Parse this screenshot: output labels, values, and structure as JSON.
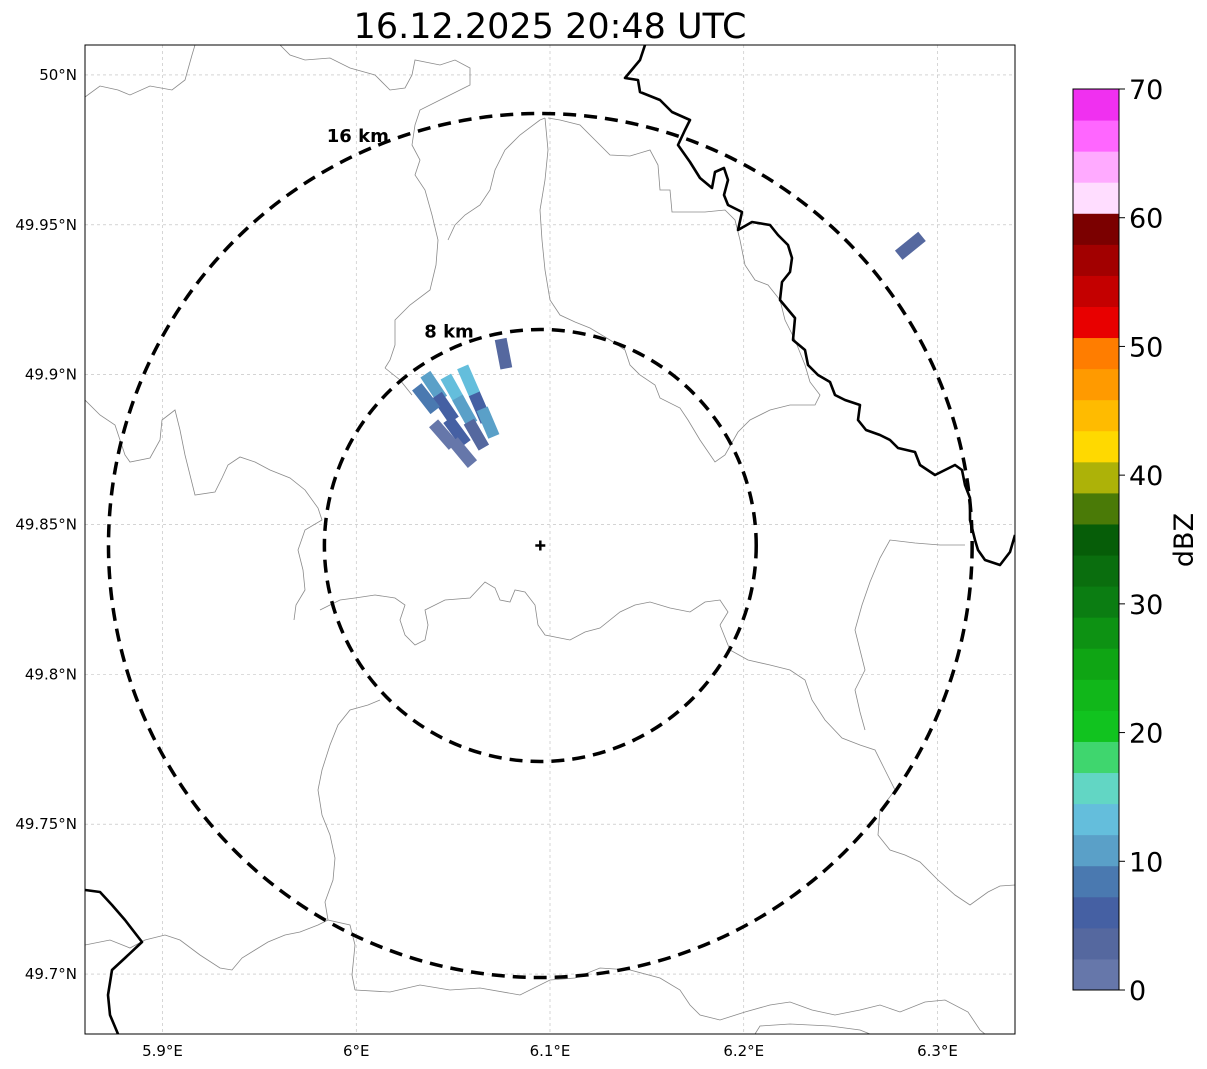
{
  "title": "16.12.2025 20:48 UTC",
  "map": {
    "lon_range": [
      5.86,
      6.34
    ],
    "lat_range": [
      49.68,
      50.01
    ],
    "radar_site": {
      "lon": 6.095,
      "lat": 49.843
    },
    "x_ticks": [
      {
        "value": 5.9,
        "label": "5.9°E"
      },
      {
        "value": 6.0,
        "label": "6°E"
      },
      {
        "value": 6.1,
        "label": "6.1°E"
      },
      {
        "value": 6.2,
        "label": "6.2°E"
      },
      {
        "value": 6.3,
        "label": "6.3°E"
      }
    ],
    "y_ticks": [
      {
        "value": 50.0,
        "label": "50°N"
      },
      {
        "value": 49.95,
        "label": "49.95°N"
      },
      {
        "value": 49.9,
        "label": "49.9°N"
      },
      {
        "value": 49.85,
        "label": "49.85°N"
      },
      {
        "value": 49.8,
        "label": "49.8°N"
      },
      {
        "value": 49.75,
        "label": "49.75°N"
      },
      {
        "value": 49.7,
        "label": "49.7°N"
      }
    ],
    "range_rings": [
      {
        "radius_km": 8,
        "label": "8 km"
      },
      {
        "radius_km": 16,
        "label": "16 km"
      }
    ],
    "grid": true
  },
  "colorbar": {
    "unit_label": "dBZ",
    "range": [
      0,
      70
    ],
    "ticks": [
      {
        "value": 0,
        "label": "0"
      },
      {
        "value": 10,
        "label": "10"
      },
      {
        "value": 20,
        "label": "20"
      },
      {
        "value": 30,
        "label": "30"
      },
      {
        "value": 40,
        "label": "40"
      },
      {
        "value": 50,
        "label": "50"
      },
      {
        "value": 60,
        "label": "60"
      },
      {
        "value": 70,
        "label": "70"
      }
    ],
    "colors": [
      "#6677aa",
      "#55689f",
      "#4560a3",
      "#4a79b0",
      "#5aa0c8",
      "#64bedc",
      "#62d6c4",
      "#3fd66e",
      "#11c31f",
      "#11b71a",
      "#0fa514",
      "#0d9213",
      "#0b7d12",
      "#0a6e0e",
      "#065d08",
      "#4a7a07",
      "#adb208",
      "#ffd900",
      "#ffbb00",
      "#ff9a00",
      "#ff7d00",
      "#e80000",
      "#c40000",
      "#a20000",
      "#7b0000",
      "#ffddff",
      "#ffaaff",
      "#ff66ff",
      "#f030f0"
    ]
  },
  "echoes": [
    {
      "lon": 6.04,
      "lat": 49.896,
      "dbz": 12
    },
    {
      "lon": 6.05,
      "lat": 49.895,
      "dbz": 14
    },
    {
      "lon": 6.058,
      "lat": 49.898,
      "dbz": 13
    },
    {
      "lon": 6.046,
      "lat": 49.889,
      "dbz": 6
    },
    {
      "lon": 6.056,
      "lat": 49.888,
      "dbz": 10
    },
    {
      "lon": 6.064,
      "lat": 49.889,
      "dbz": 7
    },
    {
      "lon": 6.068,
      "lat": 49.884,
      "dbz": 11
    },
    {
      "lon": 6.052,
      "lat": 49.881,
      "dbz": 5
    },
    {
      "lon": 6.062,
      "lat": 49.88,
      "dbz": 4
    },
    {
      "lon": 6.045,
      "lat": 49.88,
      "dbz": 1
    },
    {
      "lon": 6.055,
      "lat": 49.874,
      "dbz": 2
    },
    {
      "lon": 6.036,
      "lat": 49.892,
      "dbz": 9
    },
    {
      "lon": 6.076,
      "lat": 49.907,
      "dbz": 3
    },
    {
      "lon": 6.286,
      "lat": 49.943,
      "dbz": 4
    }
  ]
}
